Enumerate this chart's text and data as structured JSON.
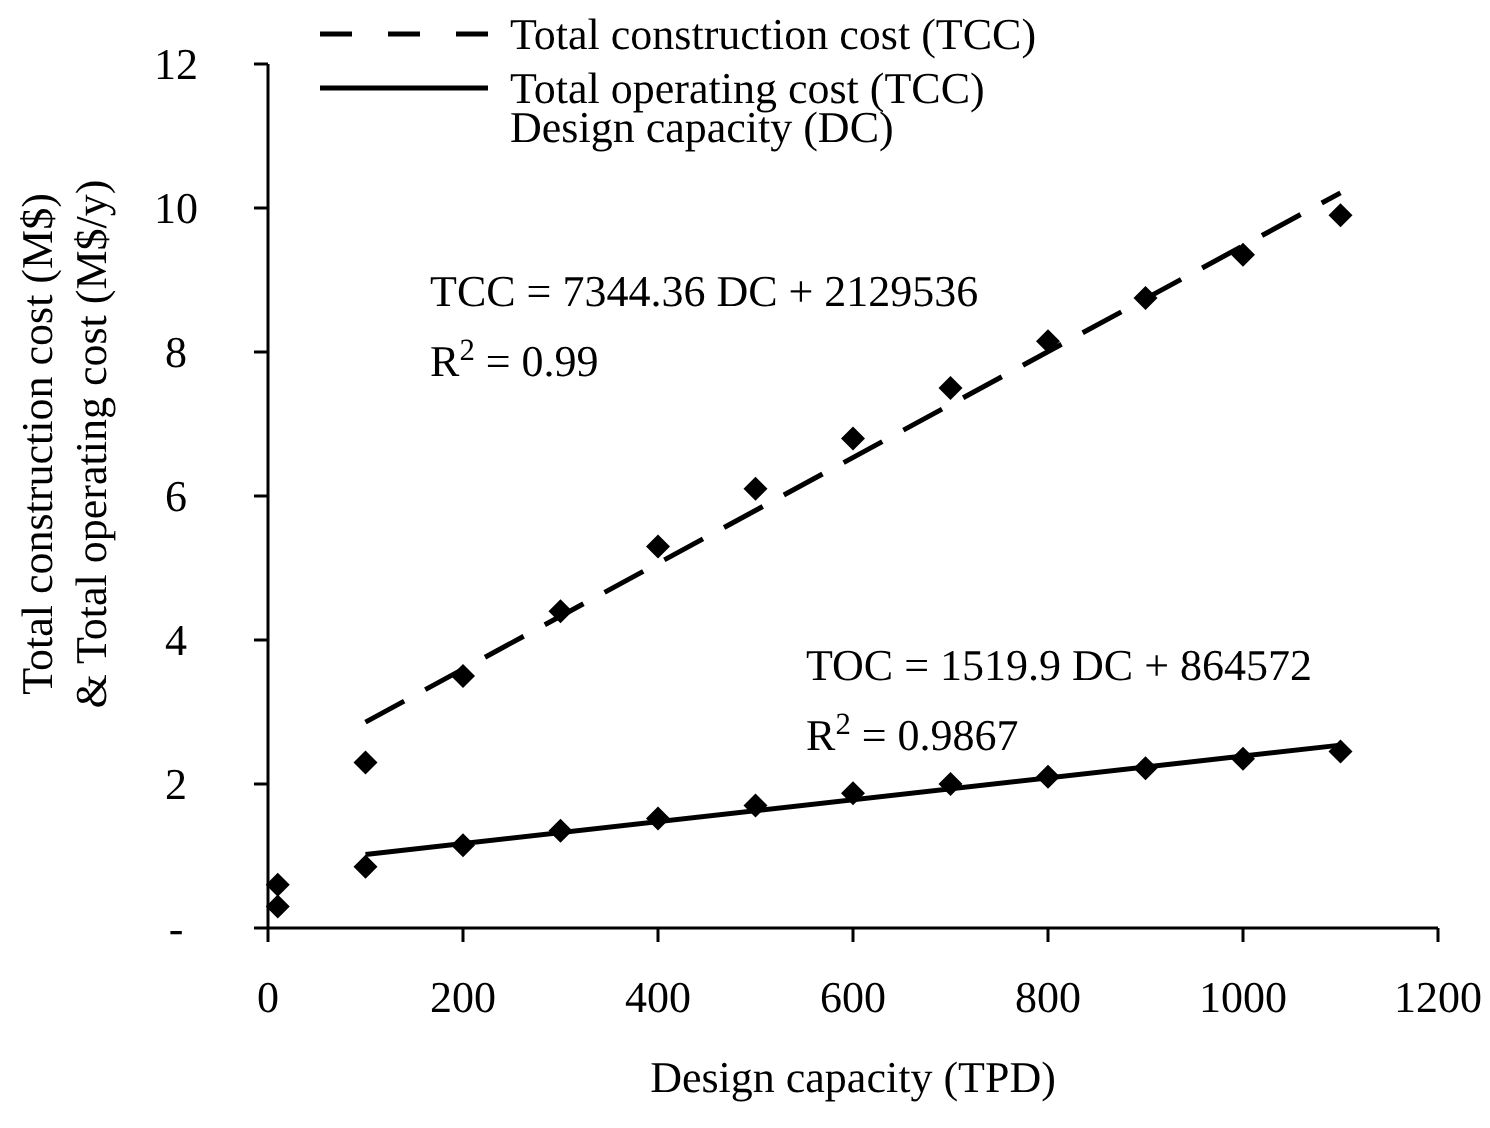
{
  "chart_data": {
    "type": "scatter",
    "xlabel": "Design capacity (TPD)",
    "ylabel": "Total construction cost (M$)\n& Total operating  cost (M$/y)",
    "xlim": [
      0,
      1200
    ],
    "xticks": [
      0,
      200,
      400,
      600,
      800,
      1000,
      1200
    ],
    "ylim": [
      0,
      12
    ],
    "yticks": [
      {
        "value": 0,
        "label": "-"
      },
      2,
      4,
      6,
      8,
      10,
      12
    ],
    "grid": false,
    "legend": "top",
    "marker": "diamond",
    "series": [
      {
        "type": "scatter",
        "color": "#000000",
        "x": [
          10,
          100,
          200,
          300,
          400,
          500,
          600,
          700,
          800,
          900,
          1000,
          1100
        ],
        "values": [
          0.6,
          2.3,
          3.5,
          4.4,
          5.3,
          6.1,
          6.8,
          7.5,
          8.15,
          8.75,
          9.35,
          9.9
        ]
      },
      {
        "type": "scatter",
        "color": "#000000",
        "x": [
          10,
          100,
          200,
          300,
          400,
          500,
          600,
          700,
          800,
          900,
          1000,
          1100
        ],
        "values": [
          0.3,
          0.85,
          1.15,
          1.35,
          1.52,
          1.7,
          1.87,
          2.0,
          2.1,
          2.22,
          2.35,
          2.45
        ]
      },
      {
        "type": "line",
        "name": "Total construction cost (TCC)",
        "color": "#000000",
        "line_style": "dashed",
        "marker": "none",
        "x": [
          100,
          1100
        ],
        "values": [
          2.86,
          10.21
        ]
      },
      {
        "type": "line",
        "name": "Total operating cost (TCC)",
        "color": "#000000",
        "line_style": "solid",
        "marker": "none",
        "x": [
          100,
          1100
        ],
        "values": [
          1.02,
          2.54
        ]
      }
    ],
    "annotations": [
      "Design capacity (DC)",
      "TCC = 7344.36 DC + 2129536",
      "R$^{2}$ = 0.99",
      "TOC = 1519.9 DC + 864572",
      "R$^{2}$ = 0.9867"
    ]
  }
}
